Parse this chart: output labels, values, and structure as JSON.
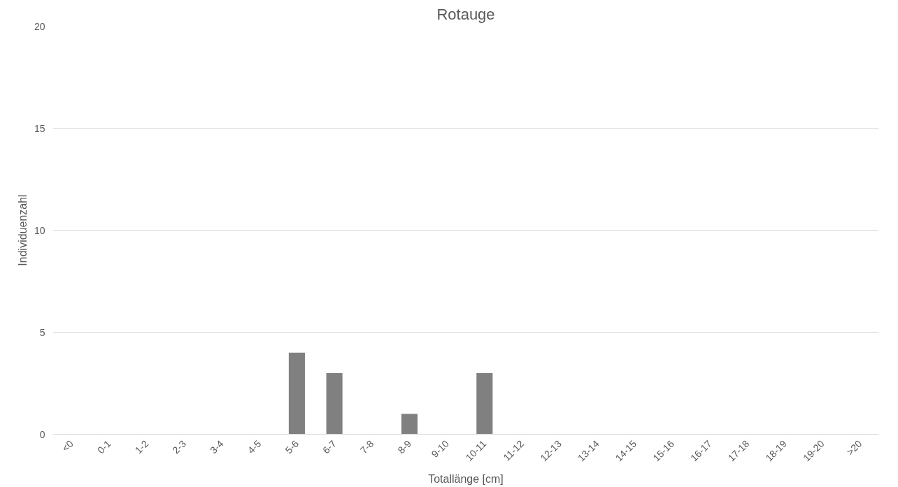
{
  "chart_data": {
    "type": "bar",
    "title": "Rotauge",
    "xlabel": "Totallänge [cm]",
    "ylabel": "Individuenzahl",
    "categories": [
      "<0",
      "0-1",
      "1-2",
      "2-3",
      "3-4",
      "4-5",
      "5-6",
      "6-7",
      "7-8",
      "8-9",
      "9-10",
      "10-11",
      "11-12",
      "12-13",
      "13-14",
      "14-15",
      "15-16",
      "16-17",
      "17-18",
      "18-19",
      "19-20",
      ">20"
    ],
    "values": [
      0,
      0,
      0,
      0,
      0,
      0,
      4,
      3,
      0,
      1,
      0,
      3,
      0,
      0,
      0,
      0,
      0,
      0,
      0,
      0,
      0,
      0
    ],
    "color": "#808080",
    "ylim": [
      0,
      20
    ],
    "yticks": [
      0,
      5,
      10,
      15,
      20
    ],
    "grid": "y"
  }
}
